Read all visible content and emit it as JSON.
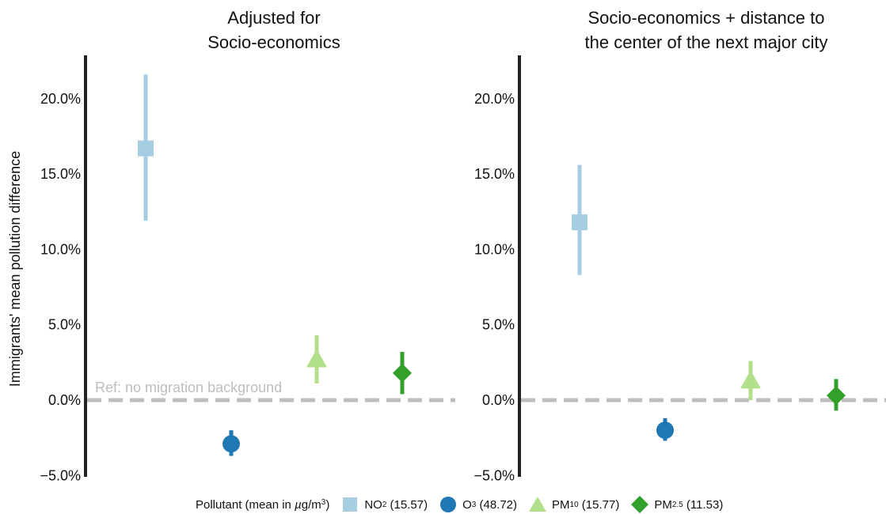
{
  "y_axis_label": "Immigrants' mean pollution difference",
  "reference_label": "Ref: no migration background",
  "legend": {
    "title_prefix": "Pollutant (mean in ",
    "title_mu": "µ",
    "title_unit": "g/m",
    "title_sup": "3",
    "title_suffix": ")",
    "entries": [
      {
        "base": "NO",
        "sub": "2",
        "mean": " (15.57)",
        "shape": "square",
        "color": "#a6cee3"
      },
      {
        "base": "O",
        "sub": "3",
        "mean": " (48.72)",
        "shape": "circle",
        "color": "#1f78b4"
      },
      {
        "base": "PM",
        "sub": "10",
        "mean": " (15.77)",
        "shape": "triangle",
        "color": "#b2df8a"
      },
      {
        "base": "PM",
        "sub": "2.5",
        "mean": " (11.53)",
        "shape": "diamond",
        "color": "#33a02c"
      }
    ]
  },
  "colors": {
    "axis": "#222222",
    "reference_line": "#bdbdbd",
    "reference_text": "#bdbdbd"
  },
  "chart_data": [
    {
      "type": "scatter",
      "title_lines": [
        "Adjusted for",
        "Socio-economics"
      ],
      "ylim": [
        -5,
        22.5
      ],
      "yticks": [
        -5,
        0,
        5,
        10,
        15,
        20
      ],
      "ytick_labels": [
        "−5.0%",
        "0.0%",
        "5.0%",
        "10.0%",
        "15.0%",
        "20.0%"
      ],
      "reference_value": 0,
      "points": [
        {
          "pollutant": "NO2",
          "estimate": 16.7,
          "ci_low": 11.9,
          "ci_high": 21.6
        },
        {
          "pollutant": "O3",
          "estimate": -2.9,
          "ci_low": -3.7,
          "ci_high": -2.0
        },
        {
          "pollutant": "PM10",
          "estimate": 2.7,
          "ci_low": 1.1,
          "ci_high": 4.3
        },
        {
          "pollutant": "PM2.5",
          "estimate": 1.8,
          "ci_low": 0.4,
          "ci_high": 3.2
        }
      ]
    },
    {
      "type": "scatter",
      "title_lines": [
        "Socio-economics + distance to",
        "the center of the next major city"
      ],
      "ylim": [
        -5,
        22.5
      ],
      "yticks": [
        -5,
        0,
        5,
        10,
        15,
        20
      ],
      "ytick_labels": [
        "−5.0%",
        "0.0%",
        "5.0%",
        "10.0%",
        "15.0%",
        "20.0%"
      ],
      "reference_value": 0,
      "points": [
        {
          "pollutant": "NO2",
          "estimate": 11.8,
          "ci_low": 8.3,
          "ci_high": 15.6
        },
        {
          "pollutant": "O3",
          "estimate": -2.0,
          "ci_low": -2.7,
          "ci_high": -1.2
        },
        {
          "pollutant": "PM10",
          "estimate": 1.3,
          "ci_low": 0.0,
          "ci_high": 2.6
        },
        {
          "pollutant": "PM2.5",
          "estimate": 0.3,
          "ci_low": -0.7,
          "ci_high": 1.4
        }
      ]
    }
  ]
}
